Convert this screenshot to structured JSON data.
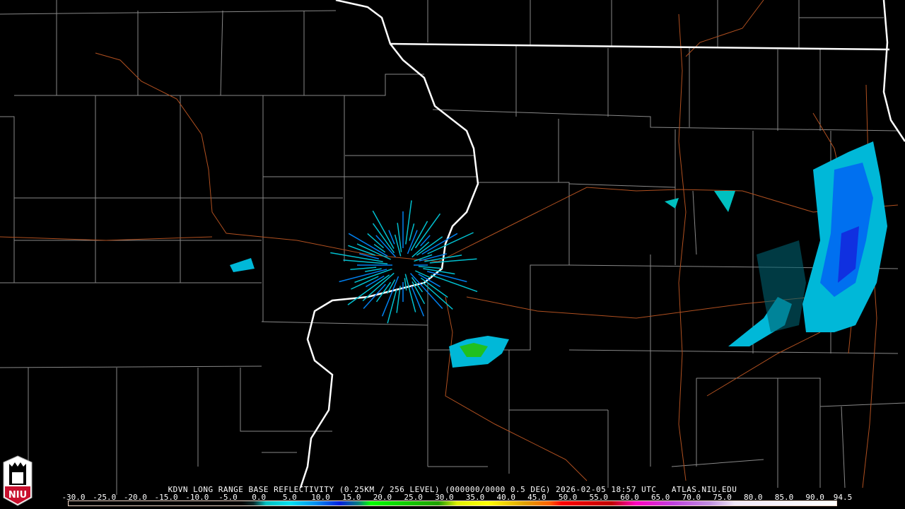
{
  "product": {
    "title": "KDVN LONG RANGE BASE REFLECTIVITY (0.25KM / 256 LEVEL) (000000/0000 0.5 DEG) 2026-02-05 18:57 UTC   ATLAS.NIU.EDU",
    "station": "KDVN",
    "datetime": "2026-02-05 18:57 UTC",
    "source": "ATLAS.NIU.EDU"
  },
  "logo": {
    "text": "NIU",
    "colors": {
      "red": "#c8102e",
      "white": "#ffffff"
    }
  },
  "legend": {
    "unit_range": [
      -30.0,
      94.5
    ],
    "tick_labels": [
      "-30.0",
      "-25.0",
      "-20.0",
      "-15.0",
      "-10.0",
      "-5.0",
      "0.0",
      "5.0",
      "10.0",
      "15.0",
      "20.0",
      "25.0",
      "30.0",
      "35.0",
      "40.0",
      "45.0",
      "50.0",
      "55.0",
      "60.0",
      "65.0",
      "70.0",
      "75.0",
      "80.0",
      "85.0",
      "90.0",
      "94.5"
    ],
    "tick_values": [
      -30,
      -25,
      -20,
      -15,
      -10,
      -5,
      0,
      5,
      10,
      15,
      20,
      25,
      30,
      35,
      40,
      45,
      50,
      55,
      60,
      65,
      70,
      75,
      80,
      85,
      90,
      94.5
    ],
    "color_stops": [
      {
        "dbz": -30,
        "color": "#000000"
      },
      {
        "dbz": -2,
        "color": "#000000"
      },
      {
        "dbz": 0,
        "color": "#0a2a2a"
      },
      {
        "dbz": 2,
        "color": "#00c0c0"
      },
      {
        "dbz": 6,
        "color": "#00e0f0"
      },
      {
        "dbz": 10,
        "color": "#0090f0"
      },
      {
        "dbz": 14,
        "color": "#0020e0"
      },
      {
        "dbz": 17,
        "color": "#008080"
      },
      {
        "dbz": 19,
        "color": "#00ff00"
      },
      {
        "dbz": 30,
        "color": "#20a000"
      },
      {
        "dbz": 33,
        "color": "#e0f000"
      },
      {
        "dbz": 38,
        "color": "#ffff00"
      },
      {
        "dbz": 44,
        "color": "#e0a000"
      },
      {
        "dbz": 48,
        "color": "#ff6000"
      },
      {
        "dbz": 50,
        "color": "#ff0000"
      },
      {
        "dbz": 58,
        "color": "#c00000"
      },
      {
        "dbz": 62,
        "color": "#ff00c0"
      },
      {
        "dbz": 68,
        "color": "#c040e0"
      },
      {
        "dbz": 74,
        "color": "#c090e0"
      },
      {
        "dbz": 78,
        "color": "#f0e8f8"
      },
      {
        "dbz": 94.5,
        "color": "#ffffff"
      }
    ]
  },
  "map_colors": {
    "county": "#888888",
    "state": "#ffffff",
    "highway": "#b05020",
    "background": "#000000"
  }
}
